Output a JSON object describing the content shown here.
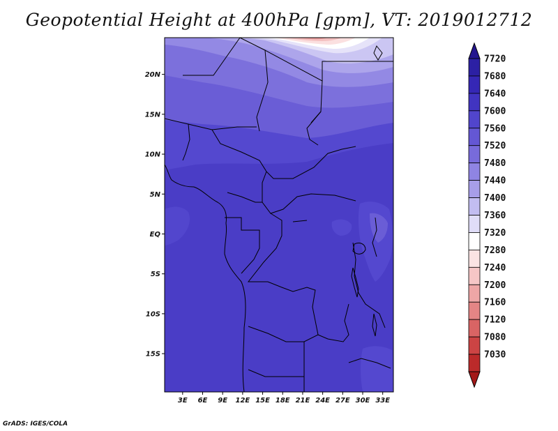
{
  "title": "Geopotential Height at 400hPa [gpm], VT: 2019012712",
  "credit": "GrADS: IGES/COLA",
  "map": {
    "lat_labels": [
      "20N",
      "15N",
      "10N",
      "5N",
      "EQ",
      "5S",
      "10S",
      "15S"
    ],
    "lat_values": [
      20,
      15,
      10,
      5,
      0,
      -5,
      -10,
      -15
    ],
    "lon_labels": [
      "3E",
      "6E",
      "9E",
      "12E",
      "15E",
      "18E",
      "21E",
      "24E",
      "27E",
      "30E",
      "33E"
    ],
    "lon_values": [
      3,
      6,
      9,
      12,
      15,
      18,
      21,
      24,
      27,
      30,
      33
    ],
    "lat_range": [
      -19.8,
      24.6
    ],
    "lon_range": [
      0.3,
      34.6
    ]
  },
  "colorbar": {
    "labels": [
      "7720",
      "7680",
      "7640",
      "7600",
      "7560",
      "7520",
      "7480",
      "7440",
      "7400",
      "7360",
      "7320",
      "7280",
      "7240",
      "7200",
      "7160",
      "7120",
      "7080",
      "7030"
    ],
    "colors": [
      "#24168f",
      "#2c20a4",
      "#3527b5",
      "#4134c1",
      "#5145cc",
      "#6457d4",
      "#786bdb",
      "#8f84e3",
      "#a79ee9",
      "#c2bdf1",
      "#e0ddf8",
      "#ffffff",
      "#fbe3e3",
      "#f6c6c6",
      "#eea6a6",
      "#e48585",
      "#d96464",
      "#cc4444",
      "#bb2a2a",
      "#a31818"
    ]
  }
}
